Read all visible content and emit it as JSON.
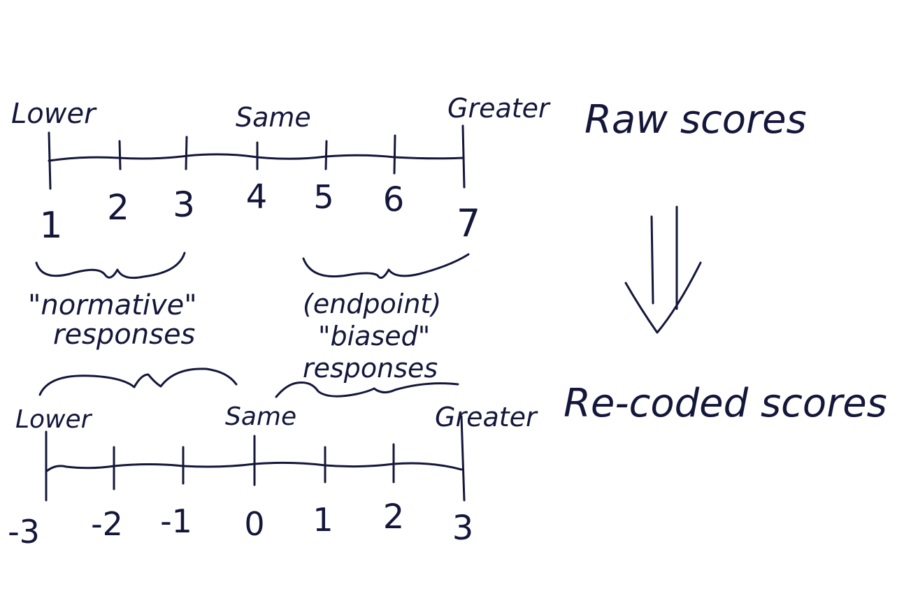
{
  "raw_scale": {
    "labels": {
      "low": "Lower",
      "mid": "Same",
      "high": "Greater"
    },
    "ticks": [
      "1",
      "2",
      "3",
      "4",
      "5",
      "6",
      "7"
    ]
  },
  "recoded_scale": {
    "labels": {
      "low": "Lower",
      "mid": "Same",
      "high": "Greater"
    },
    "ticks": [
      "-3",
      "-2",
      "-1",
      "0",
      "1",
      "2",
      "3"
    ]
  },
  "annotations": {
    "normative_line1": "\"normative\"",
    "normative_line2": "responses",
    "endpoint_line1": "(endpoint)",
    "endpoint_line2": "\"biased\"",
    "endpoint_line3": "responses"
  },
  "flow": {
    "raw_title": "Raw scores",
    "recoded_title": "Re-coded scores"
  },
  "ink_color": "#14173a"
}
